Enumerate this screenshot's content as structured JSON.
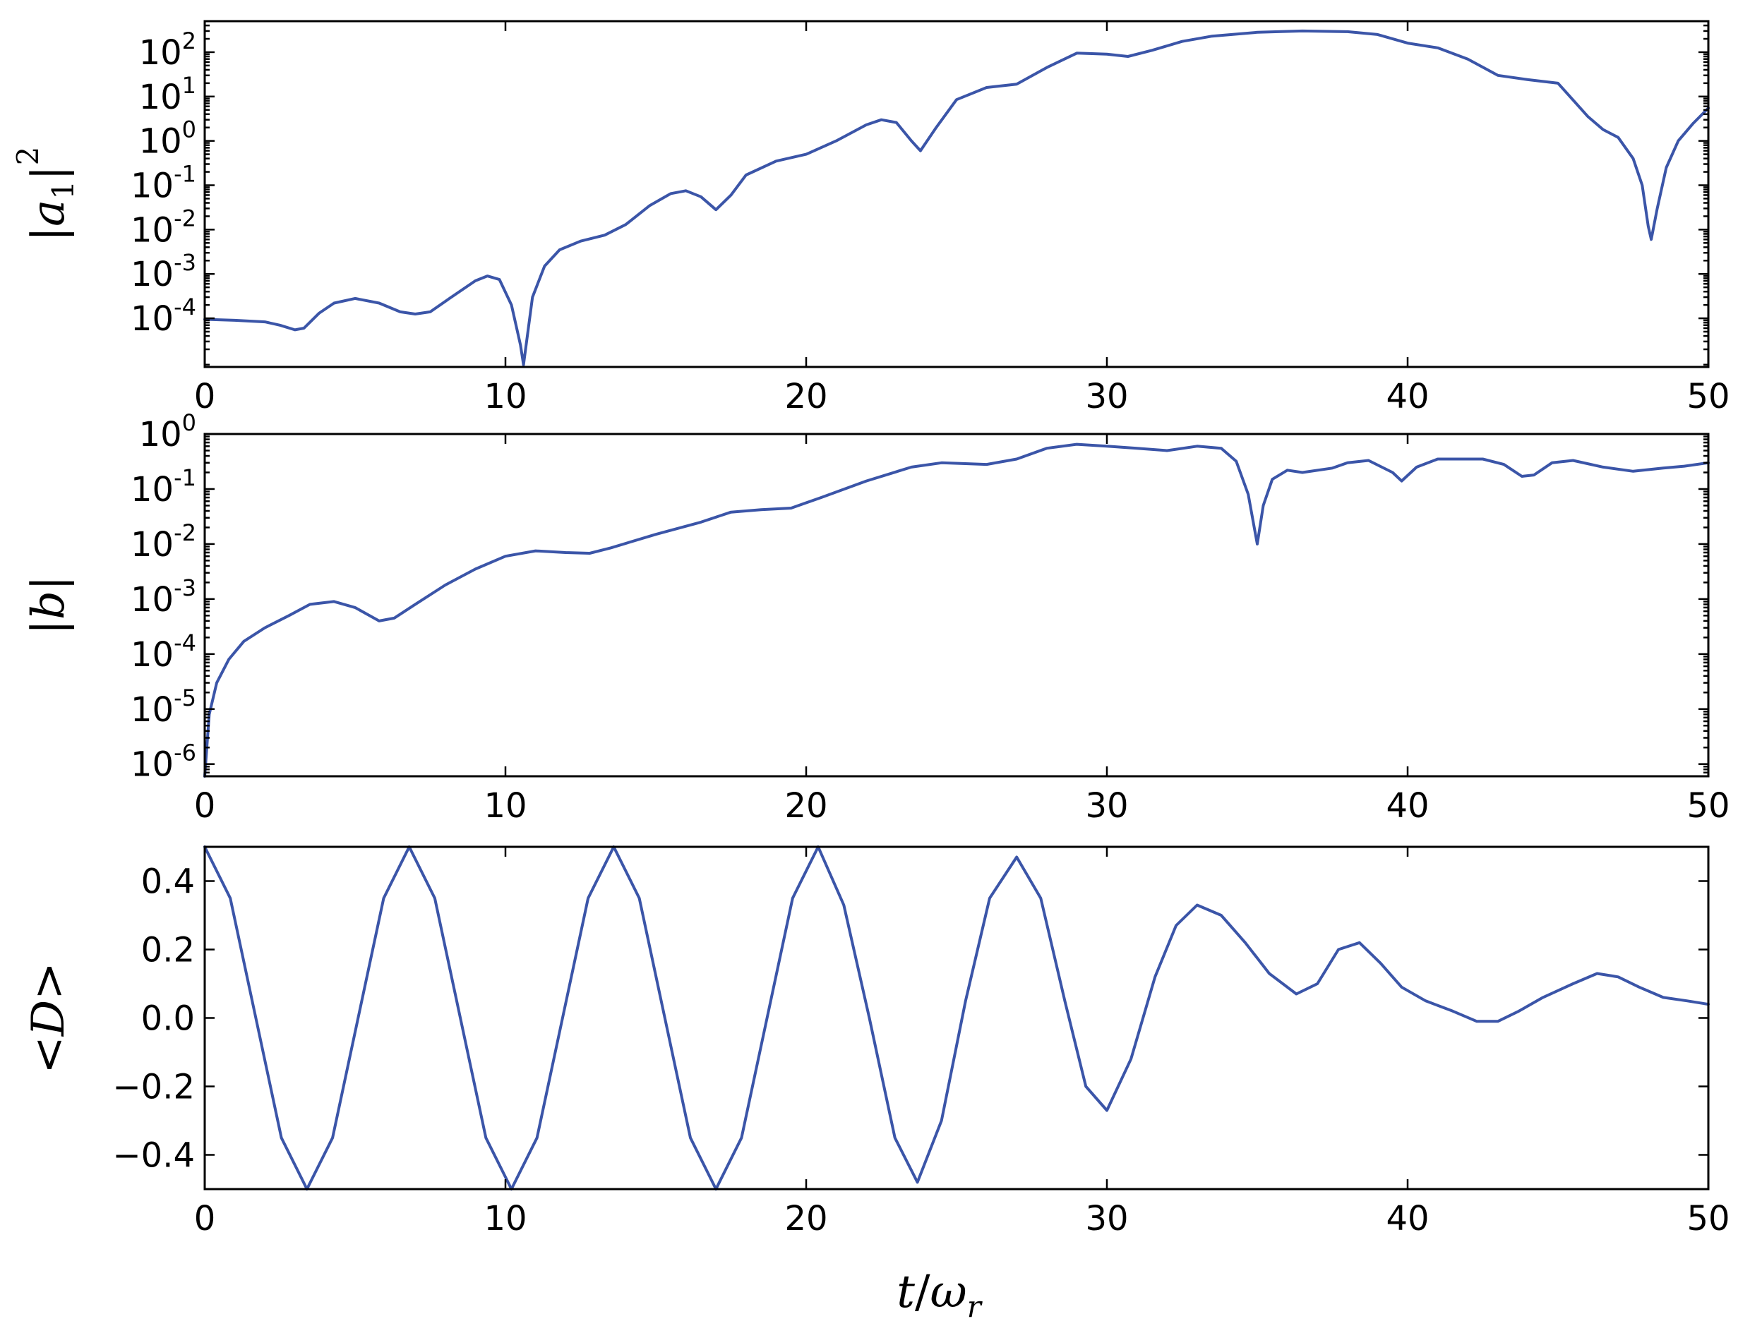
{
  "colors": {
    "line": "#3b55a8",
    "axis": "#000000",
    "background": "#ffffff"
  },
  "chart_data": [
    {
      "type": "line",
      "ylabel": "|a_1|^2",
      "xlabel": "",
      "yscale": "log",
      "xlim": [
        0,
        50
      ],
      "ylim": [
        8e-06,
        500
      ],
      "x_ticks": [
        "0",
        "10",
        "20",
        "30",
        "40",
        "50"
      ],
      "y_ticks": [
        {
          "base": "10",
          "exp": "-4"
        },
        {
          "base": "10",
          "exp": "-3"
        },
        {
          "base": "10",
          "exp": "-2"
        },
        {
          "base": "10",
          "exp": "-1"
        },
        {
          "base": "10",
          "exp": "0"
        },
        {
          "base": "10",
          "exp": "1"
        },
        {
          "base": "10",
          "exp": "2"
        }
      ],
      "grid": false,
      "series": [
        {
          "x": [
            0,
            1,
            2,
            2.5,
            3,
            3.3,
            3.8,
            4.3,
            5,
            5.8,
            6.5,
            7,
            7.5,
            8.2,
            9,
            9.4,
            9.8,
            10.2,
            10.5,
            10.6,
            10.9,
            11.3,
            11.8,
            12.5,
            13.3,
            14,
            14.8,
            15.5,
            16,
            16.5,
            17,
            17.5,
            18,
            19,
            20,
            21,
            22,
            22.5,
            23,
            23.5,
            23.8,
            24.3,
            25,
            26,
            27,
            28,
            29,
            30,
            30.7,
            31.5,
            32.5,
            33.5,
            35,
            36.5,
            38,
            39,
            40,
            41,
            42,
            43,
            44,
            45,
            46,
            46.5,
            47,
            47.5,
            47.8,
            48,
            48.1,
            48.3,
            48.6,
            49,
            49.5,
            50
          ],
          "y": [
            9.5e-05,
            9e-05,
            8.3e-05,
            7e-05,
            5.5e-05,
            6e-05,
            0.00013,
            0.00022,
            0.00028,
            0.00022,
            0.00014,
            0.000125,
            0.00014,
            0.0003,
            0.0007,
            0.0009,
            0.00075,
            0.0002,
            2.5e-05,
            9e-06,
            0.0003,
            0.0015,
            0.0035,
            0.0055,
            0.0075,
            0.013,
            0.035,
            0.065,
            0.075,
            0.055,
            0.028,
            0.06,
            0.17,
            0.35,
            0.5,
            1.0,
            2.3,
            3.0,
            2.6,
            1.0,
            0.6,
            1.9,
            8.5,
            16,
            19,
            45,
            95,
            90,
            80,
            110,
            175,
            230,
            280,
            300,
            290,
            250,
            160,
            125,
            70,
            30,
            24,
            20,
            3.5,
            1.8,
            1.2,
            0.4,
            0.1,
            0.012,
            0.006,
            0.03,
            0.25,
            1.0,
            2.5,
            5.5
          ]
        }
      ]
    },
    {
      "type": "line",
      "ylabel": "|b|",
      "xlabel": "",
      "yscale": "log",
      "xlim": [
        0,
        50
      ],
      "ylim": [
        6e-07,
        1.0
      ],
      "x_ticks": [
        "0",
        "10",
        "20",
        "30",
        "40",
        "50"
      ],
      "y_ticks": [
        {
          "base": "10",
          "exp": "-6"
        },
        {
          "base": "10",
          "exp": "-5"
        },
        {
          "base": "10",
          "exp": "-4"
        },
        {
          "base": "10",
          "exp": "-3"
        },
        {
          "base": "10",
          "exp": "-2"
        },
        {
          "base": "10",
          "exp": "-1"
        },
        {
          "base": "10",
          "exp": "0"
        }
      ],
      "grid": false,
      "series": [
        {
          "x": [
            0,
            0.15,
            0.4,
            0.8,
            1.3,
            2,
            2.8,
            3.5,
            4.3,
            5,
            5.8,
            6.3,
            7,
            8,
            9,
            10,
            11,
            12,
            12.8,
            13.5,
            15,
            16.5,
            17.5,
            18.5,
            19.5,
            20.5,
            22,
            23.5,
            24.5,
            26,
            27,
            28,
            29,
            30,
            31,
            32,
            33,
            33.8,
            34.3,
            34.7,
            34.9,
            35,
            35.2,
            35.5,
            36,
            36.5,
            37.5,
            38,
            38.7,
            39.5,
            39.8,
            40.3,
            41,
            42.5,
            43.2,
            43.8,
            44.2,
            44.8,
            45.5,
            46.5,
            47.5,
            48.5,
            49.2,
            50
          ],
          "y": [
            6e-07,
            8e-06,
            3e-05,
            8e-05,
            0.00017,
            0.0003,
            0.0005,
            0.0008,
            0.0009,
            0.0007,
            0.0004,
            0.00045,
            0.0008,
            0.0018,
            0.0035,
            0.006,
            0.0075,
            0.007,
            0.0068,
            0.0085,
            0.015,
            0.025,
            0.038,
            0.042,
            0.045,
            0.07,
            0.14,
            0.25,
            0.3,
            0.28,
            0.35,
            0.55,
            0.65,
            0.6,
            0.55,
            0.5,
            0.6,
            0.55,
            0.32,
            0.08,
            0.02,
            0.01,
            0.05,
            0.15,
            0.22,
            0.2,
            0.24,
            0.3,
            0.33,
            0.2,
            0.14,
            0.25,
            0.35,
            0.35,
            0.28,
            0.17,
            0.18,
            0.3,
            0.33,
            0.25,
            0.21,
            0.24,
            0.26,
            0.3
          ]
        }
      ]
    },
    {
      "type": "line",
      "ylabel": "<D>",
      "xlabel": "t/ω_r",
      "yscale": "linear",
      "xlim": [
        0,
        50
      ],
      "ylim": [
        -0.5,
        0.5
      ],
      "x_ticks": [
        "0",
        "10",
        "20",
        "30",
        "40",
        "50"
      ],
      "y_ticks": [
        "−0.4",
        "−0.2",
        "0.0",
        "0.2",
        "0.4"
      ],
      "y_tick_values": [
        -0.4,
        -0.2,
        0.0,
        0.2,
        0.4
      ],
      "grid": false,
      "series": [
        {
          "x": [
            0,
            0.85,
            1.7,
            2.55,
            3.4,
            4.25,
            5.1,
            5.95,
            6.8,
            7.65,
            8.5,
            9.35,
            10.2,
            11.05,
            11.9,
            12.75,
            13.6,
            14.45,
            15.3,
            16.15,
            17.0,
            17.85,
            18.7,
            19.55,
            20.4,
            21.25,
            22.1,
            22.95,
            23.7,
            24.5,
            25.3,
            26.1,
            27.0,
            27.8,
            28.6,
            29.3,
            30.0,
            30.8,
            31.6,
            32.3,
            33.0,
            33.8,
            34.6,
            35.4,
            36.3,
            37.0,
            37.7,
            38.4,
            39.1,
            39.8,
            40.6,
            41.5,
            42.3,
            43.0,
            43.7,
            44.5,
            45.5,
            46.3,
            47.0,
            47.7,
            48.5,
            49.3,
            50
          ],
          "y": [
            0.5,
            0.35,
            0.0,
            -0.35,
            -0.5,
            -0.35,
            0.0,
            0.35,
            0.5,
            0.35,
            0.0,
            -0.35,
            -0.5,
            -0.35,
            0.0,
            0.35,
            0.5,
            0.35,
            0.0,
            -0.35,
            -0.5,
            -0.35,
            0.0,
            0.35,
            0.5,
            0.33,
            0.0,
            -0.35,
            -0.48,
            -0.3,
            0.05,
            0.35,
            0.47,
            0.35,
            0.05,
            -0.2,
            -0.27,
            -0.12,
            0.12,
            0.27,
            0.33,
            0.3,
            0.22,
            0.13,
            0.07,
            0.1,
            0.2,
            0.22,
            0.16,
            0.09,
            0.05,
            0.02,
            -0.01,
            -0.01,
            0.02,
            0.06,
            0.1,
            0.13,
            0.12,
            0.09,
            0.06,
            0.05,
            0.04
          ]
        }
      ]
    }
  ]
}
